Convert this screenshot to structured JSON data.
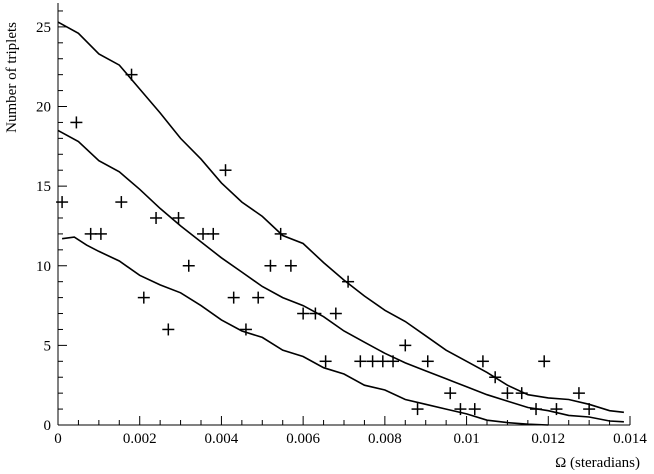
{
  "chart_data": {
    "type": "scatter",
    "title": "",
    "xlabel": "Ω (steradians)",
    "ylabel": "Number of triplets",
    "xlim": [
      0,
      0.014
    ],
    "ylim": [
      0,
      26.5
    ],
    "x_ticks": [
      0,
      0.002,
      0.004,
      0.006,
      0.008,
      0.01,
      0.012,
      0.014
    ],
    "x_tick_labels": [
      "0",
      "0.002",
      "0.004",
      "0.006",
      "0.008",
      "0.01",
      "0.012",
      "0.014"
    ],
    "y_ticks": [
      0,
      5,
      10,
      15,
      20,
      25
    ],
    "y_tick_labels": [
      "0",
      "5",
      "10",
      "15",
      "20",
      "25"
    ],
    "grid": false,
    "marker": "plus",
    "points": {
      "x": [
        0.0001,
        0.00045,
        0.0008,
        0.00105,
        0.00155,
        0.0018,
        0.0021,
        0.0024,
        0.0027,
        0.00295,
        0.0032,
        0.00355,
        0.0038,
        0.0041,
        0.0043,
        0.0046,
        0.0049,
        0.0052,
        0.00545,
        0.0057,
        0.006,
        0.0063,
        0.00655,
        0.0068,
        0.0071,
        0.0074,
        0.0077,
        0.00795,
        0.0082,
        0.0085,
        0.0088,
        0.00905,
        0.0096,
        0.00985,
        0.0102,
        0.0104,
        0.0107,
        0.011,
        0.01135,
        0.0117,
        0.0119,
        0.0122,
        0.01275,
        0.013
      ],
      "y": [
        14,
        19,
        12,
        12,
        14,
        22,
        8,
        13,
        6,
        13,
        10,
        12,
        12,
        16,
        8,
        6,
        8,
        10,
        12,
        10,
        7,
        7,
        4,
        7,
        9,
        4,
        4,
        4,
        4,
        5,
        1,
        4,
        2,
        1,
        1,
        4,
        3,
        2,
        2,
        1,
        4,
        1,
        2,
        1
      ]
    },
    "series": [
      {
        "x": [
          0,
          0.0005,
          0.001,
          0.0015,
          0.002,
          0.0025,
          0.003,
          0.0035,
          0.004,
          0.0045,
          0.005,
          0.0055,
          0.006,
          0.0065,
          0.007,
          0.0075,
          0.008,
          0.0085,
          0.009,
          0.0095,
          0.01,
          0.0105,
          0.011,
          0.0115,
          0.012,
          0.0125,
          0.013,
          0.0135,
          0.01385
        ],
        "y": [
          25.3,
          24.6,
          23.3,
          22.6,
          21.1,
          19.6,
          18.0,
          16.7,
          15.2,
          14.0,
          13.1,
          11.9,
          11.4,
          10.2,
          9.1,
          8.1,
          7.2,
          6.5,
          5.6,
          4.7,
          4.0,
          3.3,
          2.5,
          1.9,
          1.7,
          1.6,
          1.3,
          0.9,
          0.8
        ]
      },
      {
        "x": [
          0,
          0.0005,
          0.001,
          0.0015,
          0.002,
          0.0025,
          0.003,
          0.0035,
          0.004,
          0.0045,
          0.005,
          0.0055,
          0.006,
          0.0065,
          0.007,
          0.0075,
          0.008,
          0.0085,
          0.009,
          0.0095,
          0.01,
          0.0105,
          0.011,
          0.0115,
          0.012,
          0.0125,
          0.013,
          0.0135,
          0.01385
        ],
        "y": [
          18.5,
          17.8,
          16.6,
          15.9,
          14.8,
          13.6,
          12.5,
          11.5,
          10.5,
          9.6,
          8.7,
          8.0,
          7.5,
          6.8,
          5.9,
          5.2,
          4.5,
          3.9,
          3.4,
          2.9,
          2.4,
          1.9,
          1.5,
          1.1,
          0.9,
          0.6,
          0.5,
          0.25,
          0.2
        ]
      },
      {
        "x": [
          0.0001,
          0.0004,
          0.0007,
          0.001,
          0.0015,
          0.002,
          0.0025,
          0.003,
          0.0035,
          0.004,
          0.0045,
          0.005,
          0.0055,
          0.006,
          0.0065,
          0.007,
          0.0075,
          0.008,
          0.0085,
          0.009,
          0.0095,
          0.01,
          0.0105,
          0.011,
          0.0115,
          0.012
        ],
        "y": [
          11.7,
          11.8,
          11.3,
          10.9,
          10.3,
          9.4,
          8.8,
          8.3,
          7.5,
          6.6,
          5.9,
          5.5,
          4.7,
          4.3,
          3.6,
          3.2,
          2.5,
          2.2,
          1.6,
          1.3,
          1.0,
          0.7,
          0.3,
          0.15,
          0.05,
          0.0
        ]
      }
    ]
  }
}
